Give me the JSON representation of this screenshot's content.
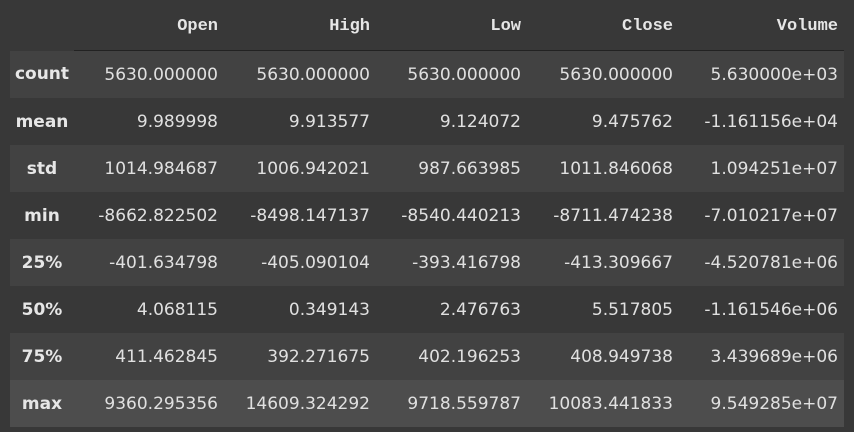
{
  "columns": [
    "Open",
    "High",
    "Low",
    "Close",
    "Volume"
  ],
  "rows": [
    {
      "label": "count",
      "values": [
        "5630.000000",
        "5630.000000",
        "5630.000000",
        "5630.000000",
        "5.630000e+03"
      ]
    },
    {
      "label": "mean",
      "values": [
        "9.989998",
        "9.913577",
        "9.124072",
        "9.475762",
        "-1.161156e+04"
      ]
    },
    {
      "label": "std",
      "values": [
        "1014.984687",
        "1006.942021",
        "987.663985",
        "1011.846068",
        "1.094251e+07"
      ]
    },
    {
      "label": "min",
      "values": [
        "-8662.822502",
        "-8498.147137",
        "-8540.440213",
        "-8711.474238",
        "-7.010217e+07"
      ]
    },
    {
      "label": "25%",
      "values": [
        "-401.634798",
        "-405.090104",
        "-393.416798",
        "-413.309667",
        "-4.520781e+06"
      ]
    },
    {
      "label": "50%",
      "values": [
        "4.068115",
        "0.349143",
        "2.476763",
        "5.517805",
        "-1.161546e+06"
      ]
    },
    {
      "label": "75%",
      "values": [
        "411.462845",
        "392.271675",
        "402.196253",
        "408.949738",
        "3.439689e+06"
      ]
    },
    {
      "label": "max",
      "values": [
        "9360.295356",
        "14609.324292",
        "9718.559787",
        "10083.441833",
        "9.549285e+07"
      ]
    }
  ]
}
